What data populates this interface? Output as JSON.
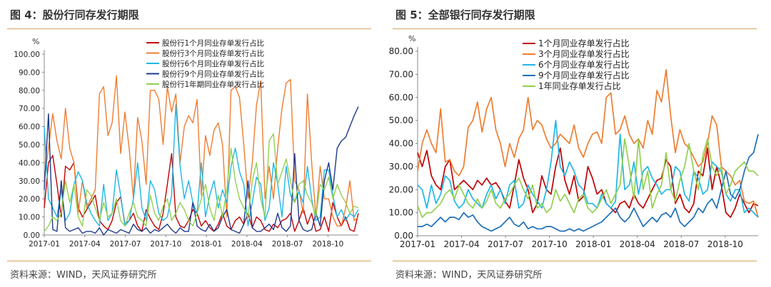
{
  "charts": [
    {
      "title": "图 4：股份行同存发行期限",
      "source": "资料来源：WIND，天风证券研究所",
      "unit": "%",
      "chart_data": {
        "type": "line",
        "ylim": [
          0,
          100
        ],
        "yticks": [
          "0.00",
          "10.00",
          "20.00",
          "30.00",
          "40.00",
          "50.00",
          "60.00",
          "70.00",
          "80.00",
          "90.00",
          "100.00"
        ],
        "xticks": [
          "2017-01",
          "2017-04",
          "2017-07",
          "2017-10",
          "2018-01",
          "2018-04",
          "2018-07",
          "2018-10"
        ],
        "legend_position": "top",
        "grid": false,
        "series": [
          {
            "name": "股份行1个月同业存单发行占比",
            "color": "#c00000",
            "values": [
              15,
              40,
              44,
              28,
              10,
              38,
              36,
              40,
              15,
              10,
              14,
              18,
              22,
              8,
              5,
              3,
              8,
              18,
              21,
              6,
              8,
              12,
              5,
              2,
              14,
              9,
              5,
              3,
              12,
              28,
              45,
              10,
              5,
              4,
              8,
              14,
              12,
              5,
              8,
              4,
              2,
              6,
              12,
              5,
              3,
              8,
              10,
              6,
              12,
              4,
              10,
              8,
              3,
              2,
              6,
              4,
              8,
              9,
              12,
              2,
              8,
              15,
              6,
              12,
              2,
              3,
              10,
              2,
              18,
              10,
              5,
              10,
              3,
              2,
              12
            ]
          },
          {
            "name": "股份行3个月同业存单发行占比",
            "color": "#ed7d31",
            "values": [
              30,
              48,
              67,
              52,
              42,
              70,
              48,
              40,
              12,
              30,
              15,
              20,
              25,
              78,
              82,
              55,
              62,
              88,
              45,
              68,
              48,
              20,
              65,
              52,
              28,
              80,
              80,
              75,
              50,
              82,
              68,
              78,
              40,
              60,
              66,
              62,
              75,
              22,
              55,
              44,
              58,
              62,
              50,
              10,
              80,
              82,
              76,
              50,
              20,
              40,
              72,
              85,
              20,
              38,
              20,
              48,
              70,
              84,
              86,
              30,
              25,
              12,
              78,
              40,
              10,
              38,
              20,
              20,
              10,
              5,
              5,
              15,
              30,
              8,
              10
            ]
          },
          {
            "name": "股份行6个月同业存单发行占比",
            "color": "#1fb6e6",
            "values": [
              60,
              20,
              15,
              10,
              25,
              8,
              12,
              28,
              35,
              30,
              18,
              12,
              8,
              5,
              28,
              8,
              12,
              36,
              22,
              5,
              8,
              20,
              40,
              15,
              8,
              30,
              25,
              12,
              8,
              10,
              22,
              72,
              38,
              20,
              30,
              18,
              12,
              40,
              10,
              22,
              30,
              15,
              25,
              18,
              38,
              48,
              35,
              28,
              5,
              18,
              32,
              28,
              8,
              15,
              40,
              28,
              10,
              38,
              22,
              18,
              24,
              18,
              38,
              20,
              8,
              10,
              36,
              36,
              22,
              10,
              14,
              8,
              12,
              10,
              14
            ]
          },
          {
            "name": "股份行9个月同业存单发行占比",
            "color": "#1f3a8a",
            "values": [
              25,
              67,
              3,
              2,
              30,
              4,
              2,
              3,
              4,
              1,
              2,
              2,
              1,
              4,
              0,
              3,
              2,
              1,
              3,
              2,
              1,
              6,
              3,
              2,
              4,
              1,
              3,
              2,
              4,
              6,
              3,
              1,
              4,
              2,
              2,
              18,
              5,
              3,
              2,
              6,
              2,
              4,
              10,
              14,
              3,
              2,
              1,
              6,
              30,
              4,
              2,
              2,
              4,
              6,
              3,
              12,
              4,
              2,
              5,
              45,
              8,
              3,
              2,
              3,
              12,
              5,
              30,
              40,
              25,
              48,
              52,
              54,
              60,
              66,
              71
            ]
          },
          {
            "name": "股份行1年期同业存单发行占比",
            "color": "#92d050",
            "values": [
              2,
              5,
              10,
              8,
              12,
              30,
              18,
              28,
              10,
              5,
              25,
              22,
              15,
              8,
              18,
              10,
              12,
              20,
              8,
              5,
              12,
              18,
              10,
              8,
              5,
              22,
              12,
              8,
              16,
              20,
              8,
              12,
              18,
              14,
              8,
              5,
              12,
              20,
              28,
              15,
              8,
              22,
              10,
              25,
              48,
              30,
              20,
              15,
              10,
              30,
              40,
              20,
              10,
              52,
              56,
              28,
              35,
              42,
              30,
              18,
              28,
              30,
              22,
              18,
              10,
              28,
              25,
              32,
              20,
              28,
              22,
              18,
              12,
              16,
              15
            ]
          }
        ]
      }
    },
    {
      "title": "图 5：全部银行同存发行期限",
      "source": "资料来源：WIND，天风证券研究所",
      "unit": "%",
      "chart_data": {
        "type": "line",
        "ylim": [
          0,
          80
        ],
        "yticks": [
          "0.00",
          "10.00",
          "20.00",
          "30.00",
          "40.00",
          "50.00",
          "60.00",
          "70.00",
          "80.00"
        ],
        "xticks": [
          "2017-01",
          "2017-04",
          "2017-07",
          "2017-10",
          "2018-01",
          "2018-04",
          "2018-07",
          "2018-10"
        ],
        "legend_position": "top",
        "grid": false,
        "series": [
          {
            "name": "1个月同业存单发行占比",
            "color": "#c00000",
            "values": [
              36,
              30,
              37,
              26,
              22,
              20,
              30,
              33,
              20,
              22,
              24,
              22,
              20,
              24,
              22,
              25,
              22,
              23,
              20,
              15,
              12,
              22,
              33,
              25,
              20,
              10,
              14,
              26,
              20,
              18,
              30,
              38,
              24,
              18,
              26,
              15,
              17,
              30,
              25,
              18,
              20,
              14,
              12,
              10,
              14,
              15,
              12,
              18,
              14,
              12,
              16,
              20,
              24,
              25,
              33,
              30,
              14,
              18,
              12,
              10,
              14,
              28,
              26,
              38,
              20,
              30,
              22,
              10,
              8,
              12,
              18,
              14,
              10,
              14,
              13
            ]
          },
          {
            "name": "3个月同业存单发行占比",
            "color": "#ed7d31",
            "values": [
              28,
              40,
              46,
              40,
              36,
              55,
              32,
              33,
              28,
              26,
              30,
              47,
              50,
              58,
              45,
              55,
              60,
              46,
              40,
              30,
              40,
              34,
              42,
              46,
              60,
              46,
              50,
              48,
              42,
              38,
              40,
              44,
              42,
              40,
              48,
              38,
              34,
              40,
              44,
              45,
              40,
              60,
              62,
              44,
              46,
              52,
              44,
              40,
              42,
              38,
              50,
              44,
              63,
              58,
              72,
              52,
              36,
              46,
              40,
              38,
              34,
              30,
              32,
              40,
              52,
              48,
              30,
              28,
              26,
              22,
              24,
              15,
              14,
              15,
              8
            ]
          },
          {
            "name": "6个月同业存单发行占比",
            "color": "#1fb6e6",
            "values": [
              22,
              20,
              12,
              22,
              14,
              18,
              26,
              24,
              15,
              12,
              14,
              20,
              16,
              14,
              12,
              18,
              22,
              16,
              20,
              14,
              22,
              24,
              12,
              14,
              22,
              18,
              15,
              12,
              20,
              32,
              50,
              30,
              26,
              32,
              28,
              22,
              20,
              14,
              14,
              12,
              18,
              14,
              12,
              15,
              44,
              20,
              22,
              32,
              18,
              28,
              30,
              25,
              22,
              18,
              20,
              20,
              30,
              28,
              18,
              15,
              28,
              25,
              18,
              20,
              32,
              30,
              28,
              18,
              15,
              20,
              20,
              10,
              12,
              10,
              8
            ]
          },
          {
            "name": "9个月同业存单发行占比",
            "color": "#1f6fb8",
            "values": [
              4,
              4,
              5,
              4,
              6,
              8,
              6,
              8,
              8,
              7,
              10,
              8,
              9,
              6,
              4,
              3,
              2,
              3,
              4,
              6,
              8,
              5,
              4,
              6,
              3,
              4,
              3,
              3,
              4,
              4,
              3,
              2,
              2,
              3,
              2,
              3,
              2,
              3,
              4,
              5,
              6,
              8,
              10,
              12,
              8,
              6,
              8,
              12,
              8,
              4,
              6,
              8,
              6,
              9,
              10,
              8,
              12,
              6,
              4,
              6,
              8,
              12,
              10,
              14,
              16,
              12,
              20,
              28,
              18,
              16,
              20,
              28,
              34,
              36,
              44
            ]
          },
          {
            "name": "1年同业存单发行占比",
            "color": "#92d050",
            "values": [
              13,
              8,
              10,
              10,
              12,
              14,
              18,
              20,
              16,
              22,
              18,
              14,
              12,
              16,
              12,
              15,
              20,
              14,
              12,
              16,
              18,
              22,
              25,
              20,
              16,
              22,
              12,
              14,
              10,
              12,
              20,
              15,
              18,
              14,
              10,
              16,
              18,
              12,
              10,
              12,
              16,
              20,
              14,
              18,
              22,
              42,
              30,
              16,
              42,
              20,
              28,
              12,
              18,
              22,
              36,
              20,
              15,
              24,
              30,
              40,
              28,
              20,
              35,
              42,
              30,
              26,
              30,
              18,
              22,
              28,
              30,
              32,
              28,
              28,
              26
            ]
          }
        ]
      }
    }
  ]
}
